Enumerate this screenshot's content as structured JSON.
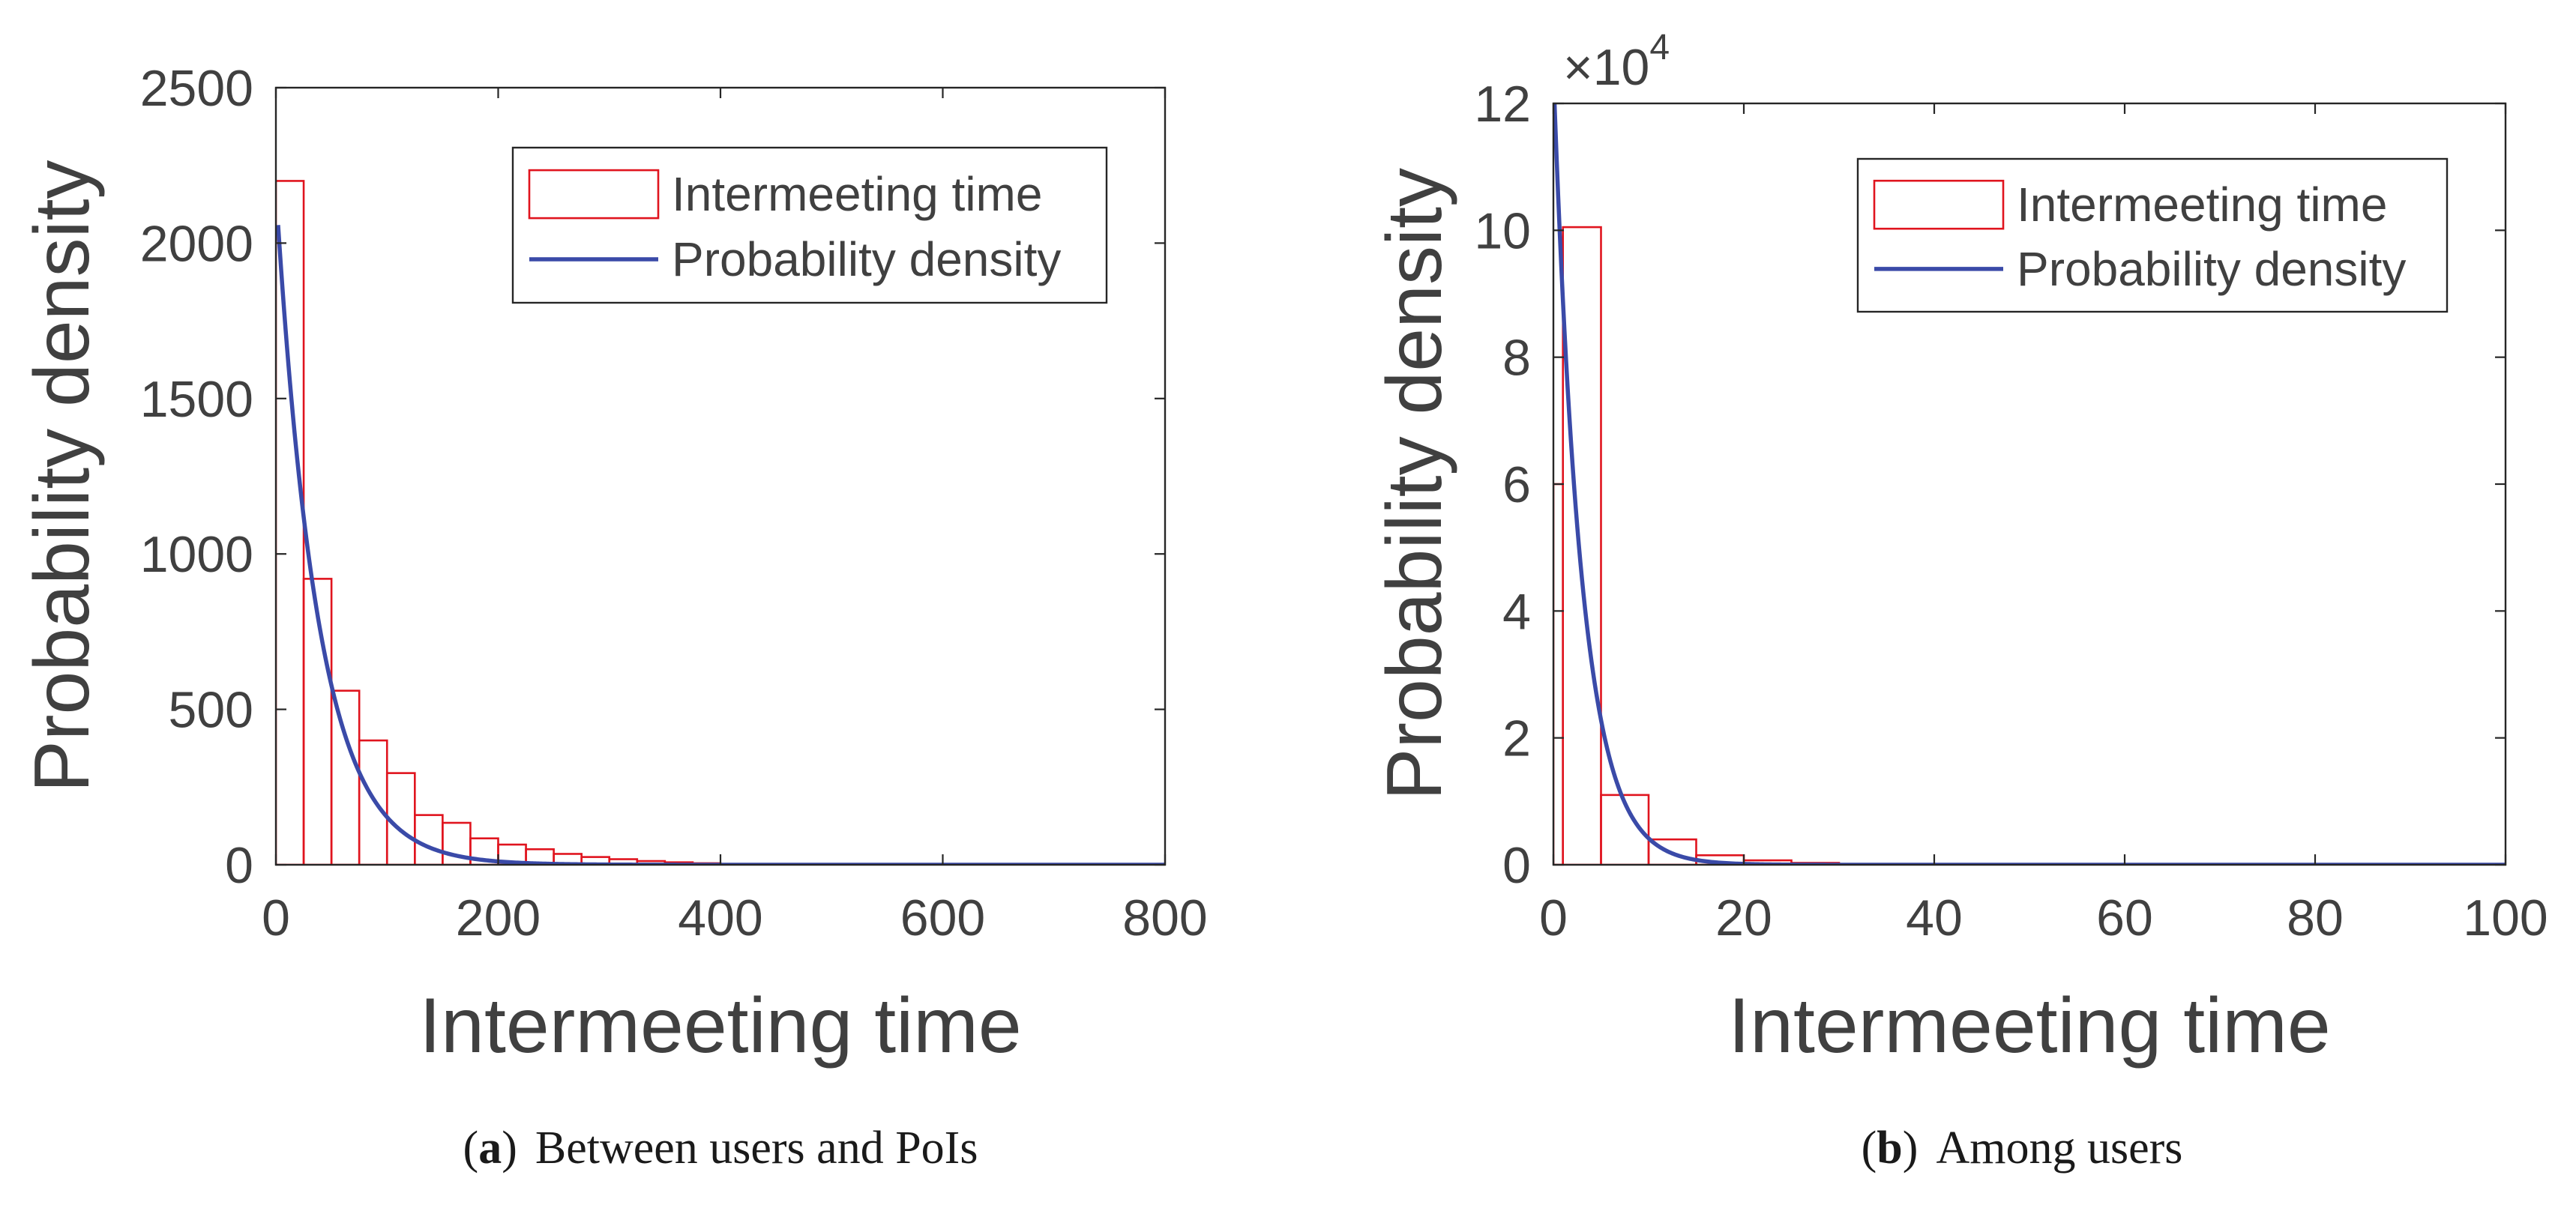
{
  "colors": {
    "histogram_edge": "#e0141e",
    "density_line": "#3a4aa8",
    "axis": "#262626",
    "text": "#404040",
    "caption": "#1a1a1a",
    "legend_border": "#262626"
  },
  "chart_data": [
    {
      "type": "bar",
      "subtype": "histogram-with-density-curve",
      "caption": {
        "letter": "a",
        "open": "(",
        "close": ")",
        "text": "Between users and PoIs"
      },
      "xlabel": "Intermeeting time",
      "ylabel": "Probability density",
      "xlim": [
        0,
        800
      ],
      "ylim": [
        0,
        2500
      ],
      "x_ticks": [
        0,
        200,
        400,
        600,
        800
      ],
      "x_tick_labels": [
        "0",
        "200",
        "400",
        "600",
        "800"
      ],
      "y_ticks": [
        0,
        500,
        1000,
        1500,
        2000,
        2500
      ],
      "y_tick_labels": [
        "0",
        "500",
        "1000",
        "1500",
        "2000",
        "2500"
      ],
      "exponent_label": null,
      "legend": {
        "position": "top-right",
        "entries": [
          "Intermeeting time",
          "Probability density"
        ]
      },
      "series": [
        {
          "name": "Intermeeting time",
          "kind": "histogram",
          "bin_edges": [
            0,
            25,
            50,
            75,
            100,
            125,
            150,
            175,
            200,
            225,
            250,
            275,
            300,
            325,
            350,
            375,
            400
          ],
          "values": [
            2200,
            920,
            560,
            400,
            295,
            160,
            135,
            85,
            65,
            50,
            35,
            25,
            18,
            12,
            8,
            5
          ]
        },
        {
          "name": "Probability density",
          "kind": "line",
          "function": "exponential",
          "amplitude": 2170,
          "rate": 0.0265,
          "x_range": [
            2,
            800
          ]
        }
      ]
    },
    {
      "type": "bar",
      "subtype": "histogram-with-density-curve",
      "caption": {
        "letter": "b",
        "open": "(",
        "close": ")",
        "text": "Among users"
      },
      "xlabel": "Intermeeting time",
      "ylabel": "Probability density",
      "xlim": [
        0,
        100
      ],
      "ylim": [
        0,
        12
      ],
      "x_ticks": [
        0,
        20,
        40,
        60,
        80,
        100
      ],
      "x_tick_labels": [
        "0",
        "20",
        "40",
        "60",
        "80",
        "100"
      ],
      "y_ticks": [
        0,
        2,
        4,
        6,
        8,
        10,
        12
      ],
      "y_tick_labels": [
        "0",
        "2",
        "4",
        "6",
        "8",
        "10",
        "12"
      ],
      "exponent_label": {
        "base": "×10",
        "power": "4"
      },
      "legend": {
        "position": "top-right",
        "entries": [
          "Intermeeting time",
          "Probability density"
        ]
      },
      "series": [
        {
          "name": "Intermeeting time",
          "kind": "histogram",
          "bin_edges": [
            0,
            1,
            5,
            10,
            15,
            20,
            25,
            30,
            35
          ],
          "values": [
            6,
            10.05,
            1.1,
            0.4,
            0.15,
            0.07,
            0.03,
            0.01
          ]
        },
        {
          "name": "Probability density",
          "kind": "line",
          "function": "exponential",
          "amplitude": 12.5,
          "rate": 0.34,
          "x_range": [
            0,
            100
          ]
        }
      ]
    }
  ]
}
